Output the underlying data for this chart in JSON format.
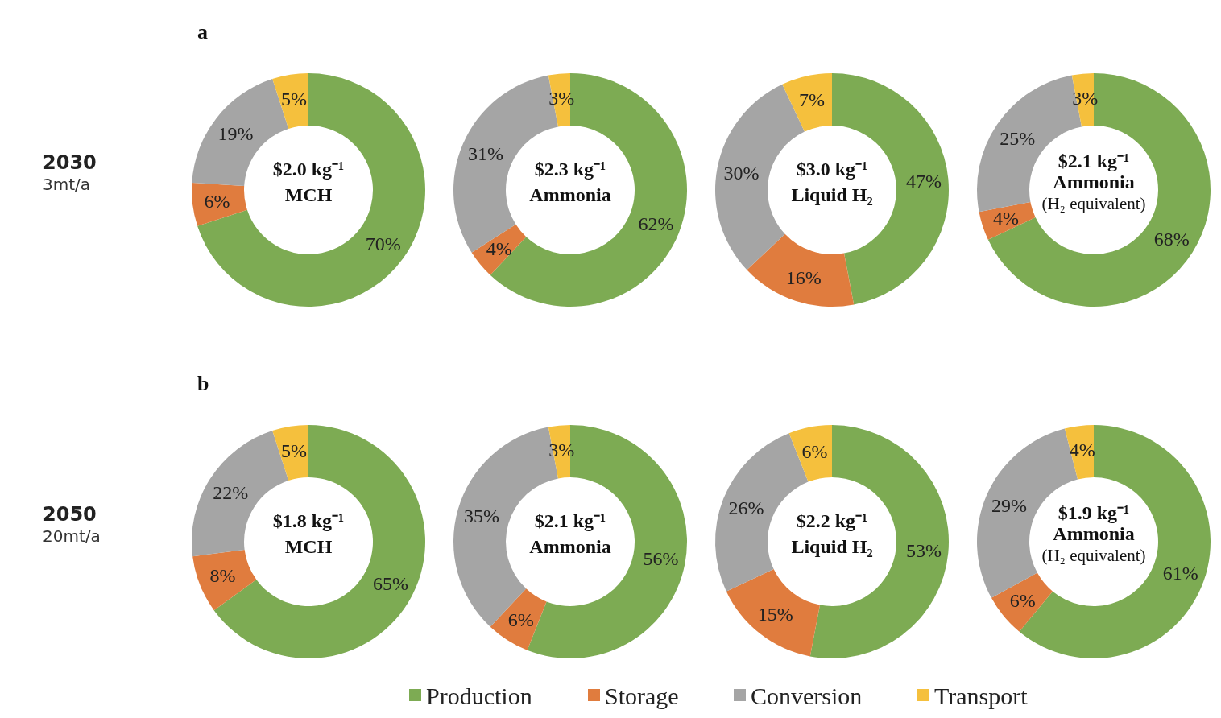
{
  "chart_data": [
    {
      "type": "donut",
      "title": "$2.0 kg⁻¹",
      "subtitle": "MCH",
      "annotations": [
        "a",
        "2030",
        "3mt/a"
      ],
      "legend": "bottom",
      "categories": [
        "Production",
        "Storage",
        "Conversion",
        "Transport"
      ],
      "values": [
        70,
        6,
        19,
        5
      ],
      "value_labels": [
        "70%",
        "6%",
        "19%",
        "5%"
      ],
      "colors": [
        "#7dab53",
        "#e07c3e",
        "#a5a5a5",
        "#f5c03d"
      ]
    },
    {
      "type": "donut",
      "title": "$2.3 kg⁻¹",
      "subtitle": "Ammonia",
      "values": [
        62,
        4,
        31,
        3
      ],
      "value_labels": [
        "62%",
        "4%",
        "31%",
        "3%"
      ],
      "colors": [
        "#7dab53",
        "#e07c3e",
        "#a5a5a5",
        "#f5c03d"
      ]
    },
    {
      "type": "donut",
      "title": "$3.0 kg⁻¹",
      "subtitle": "Liquid H₂",
      "values": [
        47,
        16,
        30,
        7
      ],
      "value_labels": [
        "47%",
        "16%",
        "30%",
        "7%"
      ],
      "colors": [
        "#7dab53",
        "#e07c3e",
        "#a5a5a5",
        "#f5c03d"
      ]
    },
    {
      "type": "donut",
      "title": "$2.1 kg⁻¹",
      "subtitle": "Ammonia\n(H₂ equivalent)",
      "values": [
        68,
        4,
        25,
        3
      ],
      "value_labels": [
        "68%",
        "4%",
        "25%",
        "3%"
      ],
      "colors": [
        "#7dab53",
        "#e07c3e",
        "#a5a5a5",
        "#f5c03d"
      ]
    },
    {
      "type": "donut",
      "title": "$1.8 kg⁻¹",
      "subtitle": "MCH",
      "annotations": [
        "b",
        "2050",
        "20mt/a"
      ],
      "values": [
        65,
        8,
        22,
        5
      ],
      "value_labels": [
        "65%",
        "8%",
        "22%",
        "5%"
      ],
      "colors": [
        "#7dab53",
        "#e07c3e",
        "#a5a5a5",
        "#f5c03d"
      ]
    },
    {
      "type": "donut",
      "title": "$2.1 kg⁻¹",
      "subtitle": "Ammonia",
      "values": [
        56,
        6,
        35,
        3
      ],
      "value_labels": [
        "56%",
        "6%",
        "35%",
        "3%"
      ],
      "colors": [
        "#7dab53",
        "#e07c3e",
        "#a5a5a5",
        "#f5c03d"
      ]
    },
    {
      "type": "donut",
      "title": "$2.2 kg⁻¹",
      "subtitle": "Liquid H₂",
      "values": [
        53,
        15,
        26,
        6
      ],
      "value_labels": [
        "53%",
        "15%",
        "26%",
        "6%"
      ],
      "colors": [
        "#7dab53",
        "#e07c3e",
        "#a5a5a5",
        "#f5c03d"
      ]
    },
    {
      "type": "donut",
      "title": "$1.9 kg⁻¹",
      "subtitle": "Ammonia\n(H₂ equivalent)",
      "values": [
        61,
        6,
        29,
        4
      ],
      "value_labels": [
        "61%",
        "6%",
        "29%",
        "4%"
      ],
      "colors": [
        "#7dab53",
        "#e07c3e",
        "#a5a5a5",
        "#f5c03d"
      ]
    }
  ]
}
